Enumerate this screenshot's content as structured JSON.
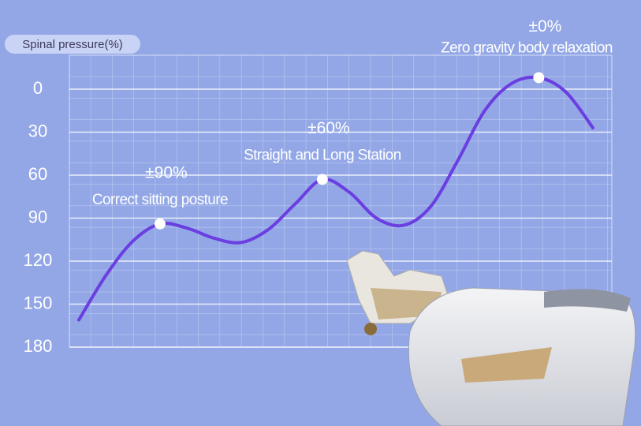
{
  "chart_data": {
    "type": "line",
    "y_label": "Spinal pressure(%)",
    "categories": [
      null,
      null,
      null,
      null,
      null,
      null,
      null,
      null,
      null,
      null,
      null,
      null,
      null,
      null,
      null,
      null,
      null,
      null,
      null,
      null
    ],
    "series": [
      {
        "color": "#6a3ee0",
        "values": [
          161,
          130,
          106,
          94,
          97,
          104,
          107,
          98,
          80,
          63,
          72,
          90,
          95,
          82,
          50,
          15,
          -4,
          -8,
          2,
          27
        ]
      }
    ],
    "ylim": [
      180,
      0
    ],
    "yticks": [
      0,
      30,
      60,
      90,
      120,
      150,
      180
    ],
    "grid": true,
    "annotations": [
      {
        "value_text": "±90%",
        "text": "Correct sitting posture"
      },
      {
        "value_text": "±60%",
        "text": "Straight and Long Station"
      },
      {
        "value_text": "±0%",
        "text": "Zero gravity body relaxation"
      }
    ]
  }
}
